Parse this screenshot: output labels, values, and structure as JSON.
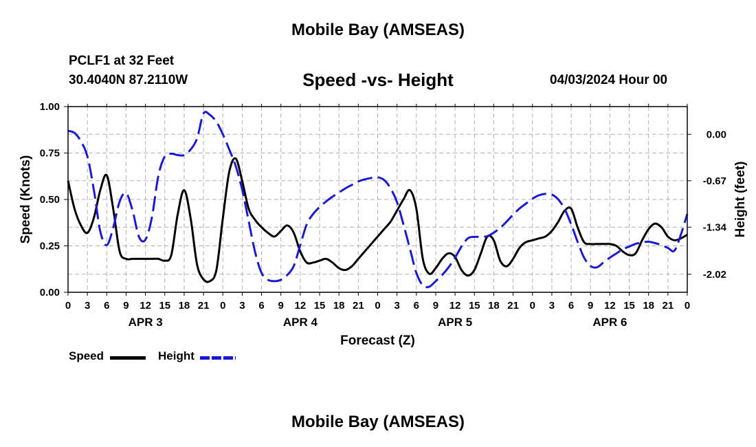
{
  "header": {
    "title": "Mobile Bay (AMSEAS)",
    "station": "PCLF1 at 32 Feet",
    "coords": "30.4040N  87.2110W",
    "subtitle": "Speed -vs- Height",
    "datetime": "04/03/2024 Hour 00"
  },
  "footer": {
    "title": "Mobile Bay (AMSEAS)"
  },
  "colors": {
    "speed": "#000000",
    "height": "#1a1ad6",
    "grid": "#b0b0b0"
  },
  "legend": {
    "speed_label": "Speed",
    "height_label": "Height"
  },
  "chart_data": {
    "type": "line",
    "title": "Speed -vs- Height",
    "xlabel": "Forecast (Z)",
    "ylabel": "Speed (Knots)",
    "y2label": "Height (feet)",
    "xlim": [
      0,
      96
    ],
    "ylim": [
      0,
      1.0
    ],
    "y2lim": [
      0.4,
      -2.28
    ],
    "yticks": [
      "0.00",
      "0.25",
      "0.50",
      "0.75",
      "1.00"
    ],
    "yticks_values": [
      0,
      0.25,
      0.5,
      0.75,
      1.0
    ],
    "y2ticks": [
      "0.00",
      "-0.67",
      "-1.34",
      "-2.02"
    ],
    "y2ticks_values": [
      0.0,
      -0.67,
      -1.34,
      -2.02
    ],
    "xticks": [
      "0",
      "3",
      "6",
      "9",
      "12",
      "15",
      "18",
      "21",
      "0",
      "3",
      "6",
      "9",
      "12",
      "15",
      "18",
      "21",
      "0",
      "3",
      "6",
      "9",
      "12",
      "15",
      "18",
      "21",
      "0",
      "3",
      "6",
      "9",
      "12",
      "15",
      "18",
      "21",
      "0"
    ],
    "day_labels": [
      {
        "label": "APR 3",
        "hour": 12
      },
      {
        "label": "APR 4",
        "hour": 36
      },
      {
        "label": "APR 5",
        "hour": 60
      },
      {
        "label": "APR 6",
        "hour": 84
      }
    ],
    "grid": true,
    "legend_position": "bottom-left",
    "series": [
      {
        "name": "Speed",
        "axis": "left",
        "style": "solid",
        "x": [
          0,
          1,
          2,
          3,
          4,
          5,
          6,
          7,
          8,
          9,
          10,
          11,
          12,
          13,
          14,
          15,
          16,
          17,
          18,
          19,
          20,
          21,
          22,
          23,
          24,
          25,
          26,
          27,
          28,
          29,
          30,
          31,
          32,
          33,
          34,
          35,
          36,
          37,
          38,
          39,
          40,
          41,
          42,
          43,
          44,
          45,
          46,
          47,
          48,
          49,
          50,
          51,
          52,
          53,
          54,
          55,
          56,
          57,
          58,
          59,
          60,
          61,
          62,
          63,
          64,
          65,
          66,
          67,
          68,
          69,
          70,
          71,
          72,
          73,
          74,
          75,
          76,
          77,
          78,
          79,
          80,
          81,
          82,
          83,
          84,
          85,
          86,
          87,
          88,
          89,
          90,
          91,
          92,
          93,
          94,
          95,
          96
        ],
        "values": [
          0.6,
          0.45,
          0.36,
          0.32,
          0.4,
          0.55,
          0.63,
          0.45,
          0.22,
          0.18,
          0.18,
          0.18,
          0.18,
          0.18,
          0.18,
          0.17,
          0.2,
          0.42,
          0.55,
          0.4,
          0.15,
          0.07,
          0.06,
          0.12,
          0.4,
          0.65,
          0.72,
          0.6,
          0.45,
          0.39,
          0.35,
          0.32,
          0.3,
          0.33,
          0.36,
          0.32,
          0.22,
          0.16,
          0.16,
          0.17,
          0.18,
          0.16,
          0.13,
          0.12,
          0.14,
          0.18,
          0.22,
          0.26,
          0.3,
          0.34,
          0.38,
          0.44,
          0.5,
          0.55,
          0.45,
          0.18,
          0.1,
          0.13,
          0.18,
          0.21,
          0.19,
          0.12,
          0.09,
          0.12,
          0.21,
          0.3,
          0.28,
          0.17,
          0.14,
          0.18,
          0.24,
          0.27,
          0.28,
          0.29,
          0.3,
          0.33,
          0.38,
          0.44,
          0.45,
          0.35,
          0.27,
          0.26,
          0.26,
          0.26,
          0.26,
          0.25,
          0.22,
          0.2,
          0.21,
          0.28,
          0.34,
          0.37,
          0.35,
          0.3,
          0.28,
          0.29,
          0.31
        ]
      },
      {
        "name": "Height",
        "axis": "right",
        "style": "dashed",
        "x": [
          0,
          1,
          2,
          3,
          4,
          5,
          6,
          7,
          8,
          9,
          10,
          11,
          12,
          13,
          14,
          15,
          16,
          17,
          18,
          19,
          20,
          21,
          22,
          23,
          24,
          25,
          26,
          27,
          28,
          29,
          30,
          31,
          32,
          33,
          34,
          35,
          36,
          37,
          38,
          39,
          40,
          41,
          42,
          43,
          44,
          45,
          46,
          47,
          48,
          49,
          50,
          51,
          52,
          53,
          54,
          55,
          56,
          57,
          58,
          59,
          60,
          61,
          62,
          63,
          64,
          65,
          66,
          67,
          68,
          69,
          70,
          71,
          72,
          73,
          74,
          75,
          76,
          77,
          78,
          79,
          80,
          81,
          82,
          83,
          84,
          85,
          86,
          87,
          88,
          89,
          90,
          91,
          92,
          93,
          94,
          95,
          96
        ],
        "values": [
          0.05,
          0.02,
          -0.1,
          -0.32,
          -0.8,
          -1.4,
          -1.6,
          -1.35,
          -0.97,
          -0.85,
          -1.1,
          -1.48,
          -1.52,
          -1.2,
          -0.6,
          -0.32,
          -0.28,
          -0.3,
          -0.3,
          -0.22,
          -0.06,
          0.3,
          0.28,
          0.18,
          0.0,
          -0.22,
          -0.46,
          -0.8,
          -1.25,
          -1.7,
          -2.0,
          -2.1,
          -2.12,
          -2.1,
          -2.03,
          -1.9,
          -1.6,
          -1.3,
          -1.15,
          -1.05,
          -0.97,
          -0.9,
          -0.84,
          -0.78,
          -0.73,
          -0.68,
          -0.65,
          -0.63,
          -0.62,
          -0.66,
          -0.78,
          -0.98,
          -1.3,
          -1.65,
          -2.0,
          -2.18,
          -2.2,
          -2.12,
          -2.03,
          -1.92,
          -1.78,
          -1.62,
          -1.5,
          -1.48,
          -1.48,
          -1.47,
          -1.42,
          -1.35,
          -1.26,
          -1.16,
          -1.07,
          -1.0,
          -0.93,
          -0.88,
          -0.86,
          -0.87,
          -0.94,
          -1.08,
          -1.3,
          -1.55,
          -1.78,
          -1.9,
          -1.92,
          -1.85,
          -1.78,
          -1.72,
          -1.66,
          -1.62,
          -1.58,
          -1.56,
          -1.55,
          -1.57,
          -1.6,
          -1.64,
          -1.68,
          -1.45,
          -1.15
        ]
      }
    ]
  }
}
